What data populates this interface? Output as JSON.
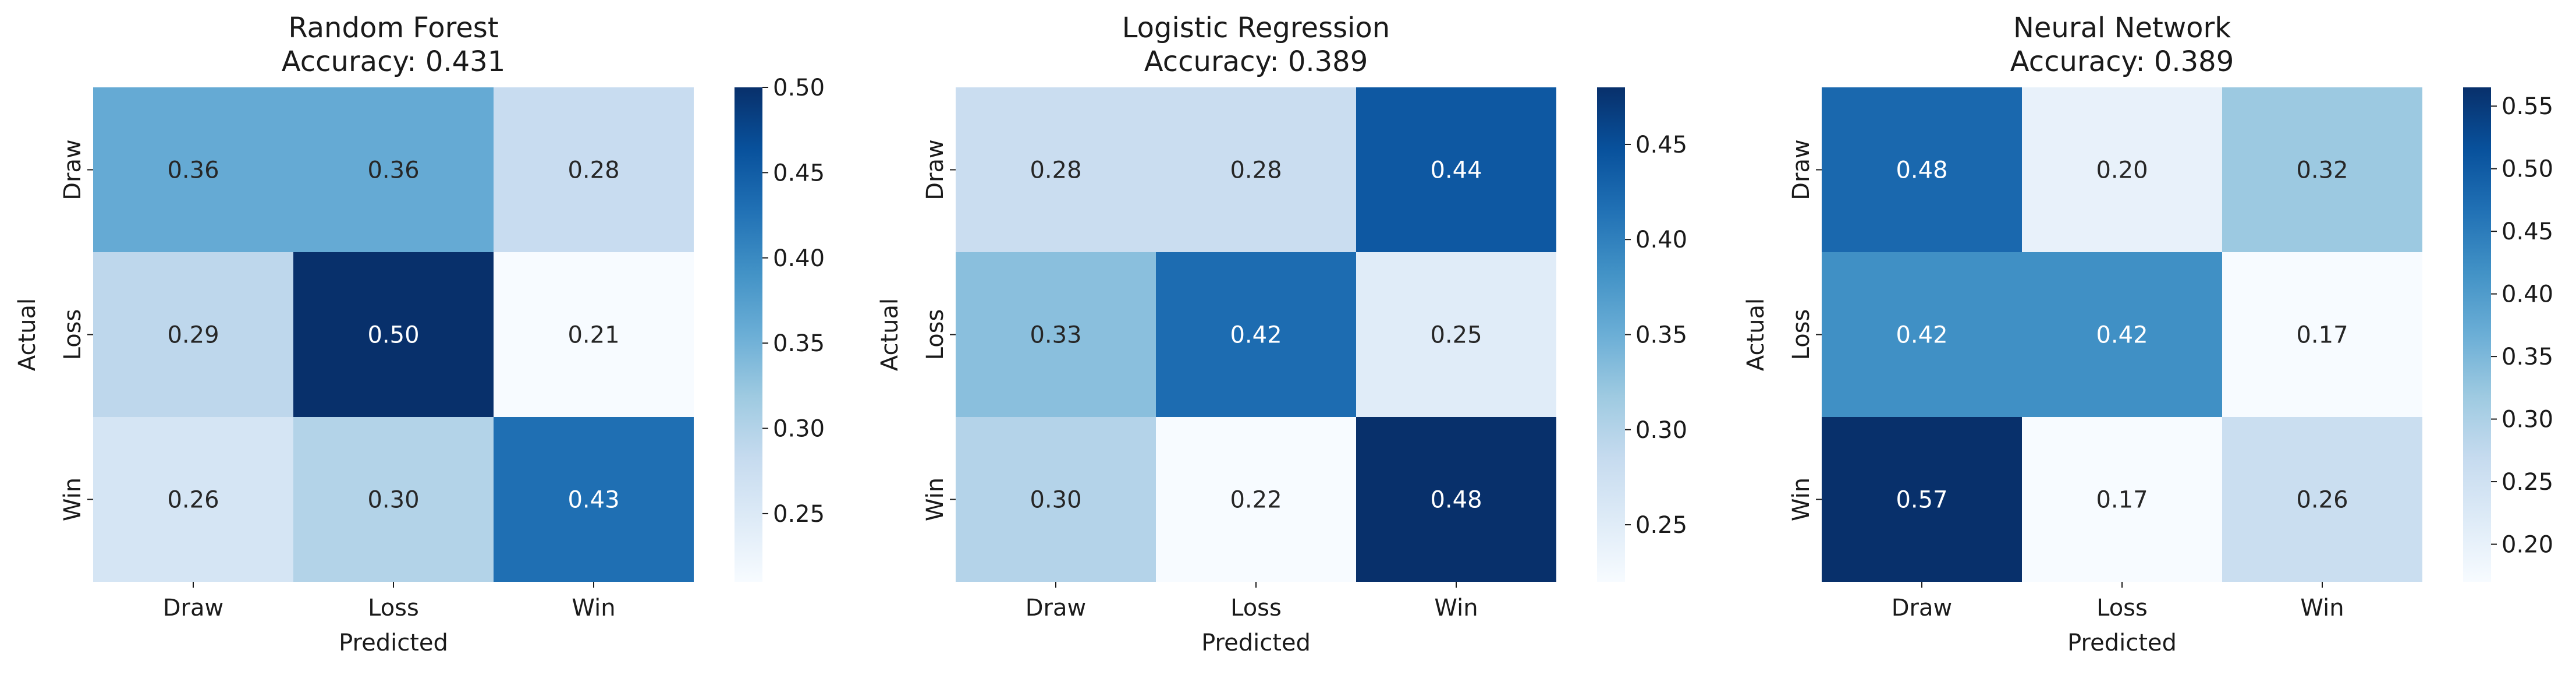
{
  "chart_data": [
    {
      "type": "heatmap",
      "title": "Random Forest",
      "subtitle": "Accuracy: 0.431",
      "xlabel": "Predicted",
      "ylabel": "Actual",
      "x_categories": [
        "Draw",
        "Loss",
        "Win"
      ],
      "y_categories": [
        "Draw",
        "Loss",
        "Win"
      ],
      "values": [
        [
          0.36,
          0.36,
          0.28
        ],
        [
          0.29,
          0.5,
          0.21
        ],
        [
          0.26,
          0.3,
          0.43
        ]
      ],
      "value_labels": [
        [
          "0.36",
          "0.36",
          "0.28"
        ],
        [
          "0.29",
          "0.50",
          "0.21"
        ],
        [
          "0.26",
          "0.30",
          "0.43"
        ]
      ],
      "colorbar": {
        "min": 0.21,
        "max": 0.5,
        "ticks": [
          0.25,
          0.3,
          0.35,
          0.4,
          0.45,
          0.5
        ],
        "tick_labels": [
          "0.25",
          "0.30",
          "0.35",
          "0.40",
          "0.45",
          "0.50"
        ]
      },
      "colormap": "Blues"
    },
    {
      "type": "heatmap",
      "title": "Logistic Regression",
      "subtitle": "Accuracy: 0.389",
      "xlabel": "Predicted",
      "ylabel": "Actual",
      "x_categories": [
        "Draw",
        "Loss",
        "Win"
      ],
      "y_categories": [
        "Draw",
        "Loss",
        "Win"
      ],
      "values": [
        [
          0.28,
          0.28,
          0.44
        ],
        [
          0.33,
          0.42,
          0.25
        ],
        [
          0.3,
          0.22,
          0.48
        ]
      ],
      "value_labels": [
        [
          "0.28",
          "0.28",
          "0.44"
        ],
        [
          "0.33",
          "0.42",
          "0.25"
        ],
        [
          "0.30",
          "0.22",
          "0.48"
        ]
      ],
      "colorbar": {
        "min": 0.22,
        "max": 0.48,
        "ticks": [
          0.25,
          0.3,
          0.35,
          0.4,
          0.45
        ],
        "tick_labels": [
          "0.25",
          "0.30",
          "0.35",
          "0.40",
          "0.45"
        ]
      },
      "colormap": "Blues"
    },
    {
      "type": "heatmap",
      "title": "Neural Network",
      "subtitle": "Accuracy: 0.389",
      "xlabel": "Predicted",
      "ylabel": "Actual",
      "x_categories": [
        "Draw",
        "Loss",
        "Win"
      ],
      "y_categories": [
        "Draw",
        "Loss",
        "Win"
      ],
      "values": [
        [
          0.48,
          0.2,
          0.32
        ],
        [
          0.42,
          0.42,
          0.17
        ],
        [
          0.57,
          0.17,
          0.26
        ]
      ],
      "value_labels": [
        [
          "0.48",
          "0.20",
          "0.32"
        ],
        [
          "0.42",
          "0.42",
          "0.17"
        ],
        [
          "0.57",
          "0.17",
          "0.26"
        ]
      ],
      "colorbar": {
        "min": 0.17,
        "max": 0.565,
        "ticks": [
          0.2,
          0.25,
          0.3,
          0.35,
          0.4,
          0.45,
          0.5,
          0.55
        ],
        "tick_labels": [
          "0.20",
          "0.25",
          "0.30",
          "0.35",
          "0.40",
          "0.45",
          "0.50",
          "0.55"
        ]
      },
      "colormap": "Blues"
    }
  ]
}
